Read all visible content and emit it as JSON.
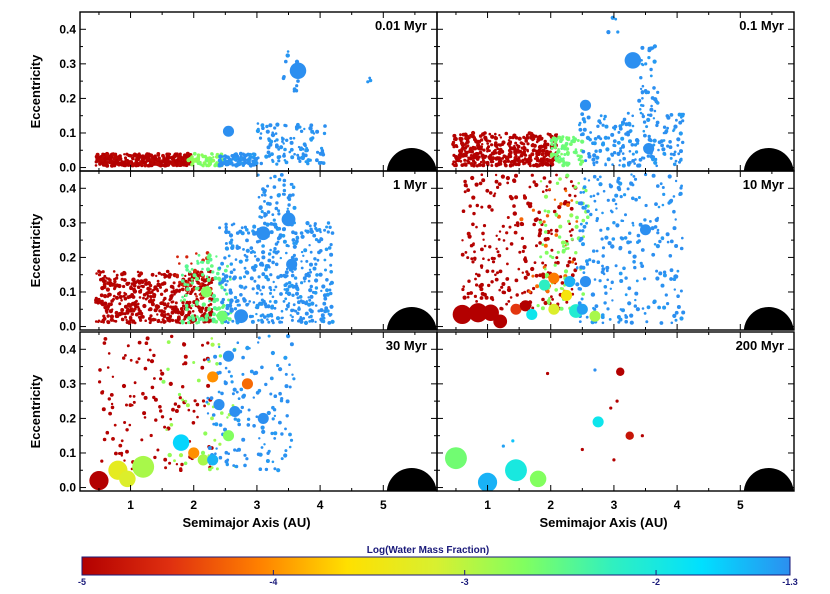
{
  "chart_data": {
    "type": "scatter",
    "layout": "3 rows x 2 columns of panels",
    "xlabel": "Semimajor Axis (AU)",
    "ylabel": "Eccentricity",
    "xlim": [
      0.2,
      5.85
    ],
    "ylim": [
      -0.01,
      0.45
    ],
    "xticks": [
      "1",
      "2",
      "3",
      "4",
      "5"
    ],
    "yticks": [
      "0.0",
      "0.1",
      "0.2",
      "0.3",
      "0.4"
    ],
    "colorbar": {
      "title": "Log(Water Mass Fraction)",
      "range": [
        -5,
        -1.3
      ],
      "ticks": [
        "-5",
        "-4",
        "-3",
        "-2",
        "-1.3"
      ],
      "stops": [
        "#b30000",
        "#e03010",
        "#ff8000",
        "#ffe000",
        "#d8f030",
        "#80ff60",
        "#30f0c0",
        "#00e0ff",
        "#2c8ff0"
      ]
    },
    "giant_planet": {
      "a": 5.45,
      "e": 0.0,
      "color": "#000000",
      "note": "Jupiter"
    },
    "panels": [
      {
        "title": "0.01 Myr",
        "groups": [
          {
            "n": 380,
            "amin": 0.45,
            "amax": 1.95,
            "emin": 0.005,
            "emax": 0.04,
            "water": -5,
            "size": 1
          },
          {
            "n": 70,
            "amin": 1.9,
            "amax": 2.45,
            "emin": 0.005,
            "emax": 0.04,
            "water": -2.7,
            "size": 1
          },
          {
            "n": 110,
            "amin": 2.4,
            "amax": 3.0,
            "emin": 0.005,
            "emax": 0.04,
            "water": -1.3,
            "size": 1
          },
          {
            "n": 110,
            "amin": 3.0,
            "amax": 4.1,
            "emin": 0.01,
            "emax": 0.13,
            "water": -1.3,
            "size": 1
          },
          {
            "n": 12,
            "amin": 3.4,
            "amax": 3.65,
            "emin": 0.22,
            "emax": 0.35,
            "water": -1.3,
            "size": 1
          },
          {
            "n": 3,
            "amin": 4.7,
            "amax": 4.9,
            "emin": 0.24,
            "emax": 0.29,
            "water": -1.3,
            "size": 1
          }
        ],
        "points": [
          {
            "a": 3.65,
            "e": 0.28,
            "water": -1.3,
            "size": 5
          },
          {
            "a": 2.55,
            "e": 0.105,
            "water": -1.3,
            "size": 3
          }
        ]
      },
      {
        "title": "0.1 Myr",
        "groups": [
          {
            "n": 420,
            "amin": 0.45,
            "amax": 2.1,
            "emin": 0.005,
            "emax": 0.1,
            "water": -5,
            "size": 1
          },
          {
            "n": 80,
            "amin": 2.0,
            "amax": 2.5,
            "emin": 0.005,
            "emax": 0.09,
            "water": -2.6,
            "size": 1
          },
          {
            "n": 180,
            "amin": 2.45,
            "amax": 4.1,
            "emin": 0.005,
            "emax": 0.16,
            "water": -1.3,
            "size": 1
          },
          {
            "n": 40,
            "amin": 3.4,
            "amax": 3.7,
            "emin": 0.15,
            "emax": 0.36,
            "water": -1.3,
            "size": 1
          },
          {
            "n": 4,
            "amin": 2.9,
            "amax": 3.1,
            "emin": 0.38,
            "emax": 0.45,
            "water": -1.3,
            "size": 1
          }
        ],
        "points": [
          {
            "a": 3.3,
            "e": 0.31,
            "water": -1.3,
            "size": 5
          },
          {
            "a": 2.55,
            "e": 0.18,
            "water": -1.3,
            "size": 3
          },
          {
            "a": 3.55,
            "e": 0.055,
            "water": -1.3,
            "size": 3
          }
        ]
      },
      {
        "title": "1 Myr",
        "groups": [
          {
            "n": 480,
            "amin": 0.45,
            "amax": 2.3,
            "emin": 0.01,
            "emax": 0.16,
            "water": -5,
            "size": 1
          },
          {
            "n": 30,
            "amin": 1.7,
            "amax": 2.3,
            "emin": 0.08,
            "emax": 0.22,
            "water": -4.7,
            "size": 1
          },
          {
            "n": 110,
            "amin": 1.8,
            "amax": 2.6,
            "emin": 0.01,
            "emax": 0.21,
            "water": -2.5,
            "size": 1
          },
          {
            "n": 420,
            "amin": 2.4,
            "amax": 4.2,
            "emin": 0.01,
            "emax": 0.3,
            "water": -1.3,
            "size": 1
          },
          {
            "n": 60,
            "amin": 3.0,
            "amax": 3.6,
            "emin": 0.28,
            "emax": 0.44,
            "water": -1.3,
            "size": 1
          }
        ],
        "points": [
          {
            "a": 3.5,
            "e": 0.31,
            "water": -1.3,
            "size": 4
          },
          {
            "a": 3.1,
            "e": 0.27,
            "water": -1.3,
            "size": 4
          },
          {
            "a": 2.75,
            "e": 0.03,
            "water": -1.3,
            "size": 4
          },
          {
            "a": 3.55,
            "e": 0.18,
            "water": -1.3,
            "size": 3
          },
          {
            "a": 2.2,
            "e": 0.1,
            "water": -2.7,
            "size": 3
          },
          {
            "a": 2.45,
            "e": 0.03,
            "water": -2.6,
            "size": 3
          }
        ]
      },
      {
        "title": "10 Myr",
        "groups": [
          {
            "n": 260,
            "amin": 0.6,
            "amax": 2.4,
            "emin": 0.05,
            "emax": 0.44,
            "water": -5,
            "size": 1
          },
          {
            "n": 25,
            "amin": 1.5,
            "amax": 2.5,
            "emin": 0.1,
            "emax": 0.4,
            "water": -4.2,
            "size": 1
          },
          {
            "n": 70,
            "amin": 1.8,
            "amax": 2.6,
            "emin": 0.05,
            "emax": 0.44,
            "water": -2.7,
            "size": 1
          },
          {
            "n": 250,
            "amin": 2.4,
            "amax": 4.1,
            "emin": 0.01,
            "emax": 0.44,
            "water": -1.3,
            "size": 1
          }
        ],
        "points": [
          {
            "a": 0.6,
            "e": 0.035,
            "water": -5,
            "size": 6
          },
          {
            "a": 0.85,
            "e": 0.04,
            "water": -5,
            "size": 6
          },
          {
            "a": 1.05,
            "e": 0.04,
            "water": -5,
            "size": 5
          },
          {
            "a": 1.2,
            "e": 0.015,
            "water": -5,
            "size": 4
          },
          {
            "a": 1.45,
            "e": 0.05,
            "water": -4.5,
            "size": 3
          },
          {
            "a": 1.6,
            "e": 0.06,
            "water": -5,
            "size": 3
          },
          {
            "a": 1.7,
            "e": 0.035,
            "water": -1.9,
            "size": 3
          },
          {
            "a": 1.9,
            "e": 0.12,
            "water": -2.2,
            "size": 3
          },
          {
            "a": 2.05,
            "e": 0.14,
            "water": -4.1,
            "size": 3
          },
          {
            "a": 2.25,
            "e": 0.09,
            "water": -3.5,
            "size": 3
          },
          {
            "a": 2.4,
            "e": 0.045,
            "water": -2.1,
            "size": 4
          },
          {
            "a": 2.5,
            "e": 0.05,
            "water": -1.4,
            "size": 3
          },
          {
            "a": 2.3,
            "e": 0.13,
            "water": -1.5,
            "size": 3
          },
          {
            "a": 2.55,
            "e": 0.13,
            "water": -1.3,
            "size": 3
          },
          {
            "a": 3.5,
            "e": 0.28,
            "water": -1.3,
            "size": 3
          },
          {
            "a": 2.7,
            "e": 0.03,
            "water": -2.9,
            "size": 3
          },
          {
            "a": 2.05,
            "e": 0.05,
            "water": -3.2,
            "size": 3
          }
        ]
      },
      {
        "title": "30 Myr",
        "groups": [
          {
            "n": 130,
            "amin": 0.5,
            "amax": 2.3,
            "emin": 0.05,
            "emax": 0.44,
            "water": -5,
            "size": 1
          },
          {
            "n": 40,
            "amin": 1.5,
            "amax": 2.7,
            "emin": 0.05,
            "emax": 0.44,
            "water": -2.8,
            "size": 1
          },
          {
            "n": 140,
            "amin": 2.2,
            "amax": 3.6,
            "emin": 0.05,
            "emax": 0.44,
            "water": -1.3,
            "size": 1
          }
        ],
        "points": [
          {
            "a": 0.5,
            "e": 0.02,
            "water": -5,
            "size": 6
          },
          {
            "a": 0.8,
            "e": 0.05,
            "water": -3.3,
            "size": 6
          },
          {
            "a": 0.95,
            "e": 0.025,
            "water": -3.2,
            "size": 5
          },
          {
            "a": 1.2,
            "e": 0.06,
            "water": -2.9,
            "size": 7
          },
          {
            "a": 1.8,
            "e": 0.13,
            "water": -1.7,
            "size": 5
          },
          {
            "a": 2.0,
            "e": 0.1,
            "water": -4.0,
            "size": 3
          },
          {
            "a": 2.15,
            "e": 0.08,
            "water": -2.9,
            "size": 3
          },
          {
            "a": 2.3,
            "e": 0.08,
            "water": -1.5,
            "size": 3
          },
          {
            "a": 2.55,
            "e": 0.15,
            "water": -2.7,
            "size": 3
          },
          {
            "a": 2.65,
            "e": 0.22,
            "water": -1.3,
            "size": 3
          },
          {
            "a": 2.4,
            "e": 0.24,
            "water": -1.3,
            "size": 3
          },
          {
            "a": 2.3,
            "e": 0.32,
            "water": -4.0,
            "size": 3
          },
          {
            "a": 2.55,
            "e": 0.38,
            "water": -1.3,
            "size": 3
          },
          {
            "a": 3.1,
            "e": 0.2,
            "water": -1.3,
            "size": 3
          },
          {
            "a": 2.85,
            "e": 0.3,
            "water": -4.2,
            "size": 3
          }
        ]
      },
      {
        "title": "200 Myr",
        "groups": [],
        "points": [
          {
            "a": 0.5,
            "e": 0.085,
            "water": -2.6,
            "size": 7
          },
          {
            "a": 1.0,
            "e": 0.015,
            "water": -1.5,
            "size": 6
          },
          {
            "a": 1.45,
            "e": 0.05,
            "water": -2.0,
            "size": 7
          },
          {
            "a": 1.8,
            "e": 0.025,
            "water": -2.7,
            "size": 5
          },
          {
            "a": 2.75,
            "e": 0.19,
            "water": -1.9,
            "size": 3
          },
          {
            "a": 3.1,
            "e": 0.335,
            "water": -5,
            "size": 2
          },
          {
            "a": 3.25,
            "e": 0.15,
            "water": -4.8,
            "size": 2
          },
          {
            "a": 2.5,
            "e": 0.11,
            "water": -5,
            "size": 1
          },
          {
            "a": 1.95,
            "e": 0.33,
            "water": -5,
            "size": 1
          },
          {
            "a": 2.95,
            "e": 0.23,
            "water": -5,
            "size": 1
          },
          {
            "a": 3.05,
            "e": 0.25,
            "water": -5,
            "size": 1
          },
          {
            "a": 3.0,
            "e": 0.08,
            "water": -5,
            "size": 1
          },
          {
            "a": 3.45,
            "e": 0.15,
            "water": -5,
            "size": 1
          },
          {
            "a": 2.7,
            "e": 0.34,
            "water": -1.3,
            "size": 1
          },
          {
            "a": 1.25,
            "e": 0.12,
            "water": -1.4,
            "size": 1
          },
          {
            "a": 1.4,
            "e": 0.135,
            "water": -1.6,
            "size": 1
          }
        ]
      }
    ]
  }
}
